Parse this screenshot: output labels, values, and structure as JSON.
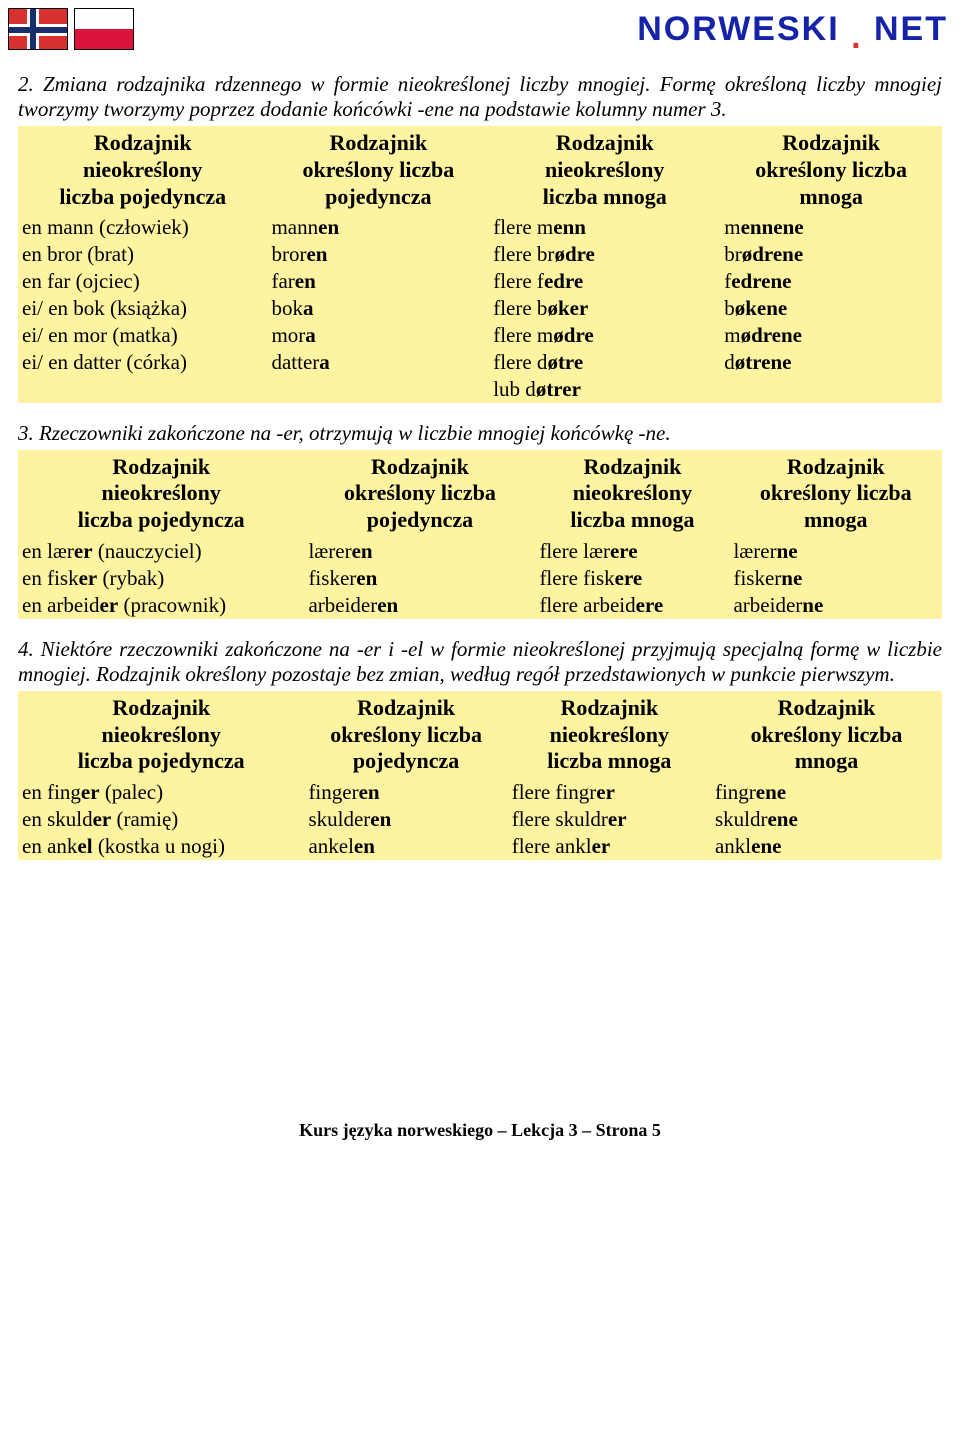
{
  "brand": {
    "part1": "NORWESKI",
    "dot": ".",
    "part2": "NET"
  },
  "intro1": "2. Zmiana rodzajnika rdzennego w formie nieokreślonej liczby mnogiej. Formę określoną liczby mnogiej tworzymy tworzymy poprzez dodanie końcówki -ene na podstawie kolumny numer 3.",
  "table1": {
    "headers": [
      "Rodzajnik nieokreślony liczba pojedyncza",
      "Rodzajnik określony liczba pojedyncza",
      "Rodzajnik nieokreślony liczba mnoga",
      "Rodzajnik określony liczba mnoga"
    ],
    "rows": [
      [
        "en mann (człowiek)",
        "mann<b>en</b>",
        "flere m<b>enn</b>",
        "m<b>ennene</b>"
      ],
      [
        "en bror (brat)",
        "bror<b>en</b>",
        "flere br<b>ødre</b>",
        "br<b>ødrene</b>"
      ],
      [
        "en far (ojciec)",
        "far<b>en</b>",
        "flere f<b>edre</b>",
        "f<b>edrene</b>"
      ],
      [
        "ei/ en bok (książka)",
        "bok<b>a</b>",
        "flere b<b>øker</b>",
        "b<b>økene</b>"
      ],
      [
        "ei/ en mor (matka)",
        "mor<b>a</b>",
        "flere  m<b>ødre</b>",
        "m<b>ødrene</b>"
      ],
      [
        "ei/ en datter (córka)",
        "datter<b>a</b>",
        "flere d<b>øtre</b><br>lub d<b>øtrer</b>",
        "d<b>øtrene</b>"
      ]
    ],
    "widths": [
      "27%",
      "24%",
      "25%",
      "24%"
    ]
  },
  "intro2": "3. Rzeczowniki zakończone na -er, otrzymują w liczbie mnogiej końcówkę -ne.",
  "table2": {
    "headers": [
      "Rodzajnik nieokreślony liczba pojedyncza",
      "Rodzajnik określony liczba pojedyncza",
      "Rodzajnik nieokreślony liczba mnoga",
      "Rodzajnik określony liczba mnoga"
    ],
    "rows": [
      [
        "en lær<b>er</b> (nauczyciel)",
        "lærer<b>en</b>",
        "flere lær<b>ere</b>",
        "lærer<b>ne</b>"
      ],
      [
        "en fisk<b>er</b> (rybak)",
        "fisker<b>en</b>",
        "flere fisk<b>ere</b>",
        "fisker<b>ne</b>"
      ],
      [
        "en arbeid<b>er</b> (pracownik)",
        "arbeider<b>en</b>",
        "flere arbeid<b>ere</b>",
        "arbeider<b>ne</b>"
      ]
    ],
    "widths": [
      "31%",
      "25%",
      "21%",
      "23%"
    ]
  },
  "intro3": "4. Niektóre rzeczowniki zakończone na -er i -el  w formie nieokreślonej przyjmują specjalną formę w liczbie mnogiej. Rodzajnik określony  pozostaje bez zmian, według regół przedstawionych w punkcie pierwszym.",
  "table3": {
    "headers": [
      "Rodzajnik nieokreślony liczba pojedyncza",
      "Rodzajnik określony liczba pojedyncza",
      "Rodzajnik nieokreślony liczba mnoga",
      "Rodzajnik określony liczba mnoga"
    ],
    "rows": [
      [
        "en fing<b>er</b> (palec)",
        "finger<b>en</b>",
        "flere fingr<b>er</b>",
        "fingr<b>ene</b>"
      ],
      [
        "en skuld<b>er</b> (ramię)",
        "skulder<b>en</b>",
        "flere skuldr<b>er</b>",
        "skuldr<b>ene</b>"
      ],
      [
        "en ank<b>el</b> (kostka u nogi)",
        "ankel<b>en</b>",
        "flere ankl<b>er</b>",
        "ankl<b>ene</b>"
      ]
    ],
    "widths": [
      "31%",
      "22%",
      "22%",
      "25%"
    ]
  },
  "footer": "Kurs języka norweskiego – Lekcja 3 – Strona 5",
  "colors": {
    "table_bg": "#fef3a0",
    "brand_blue": "#1423a8",
    "brand_red": "#d7322f"
  }
}
